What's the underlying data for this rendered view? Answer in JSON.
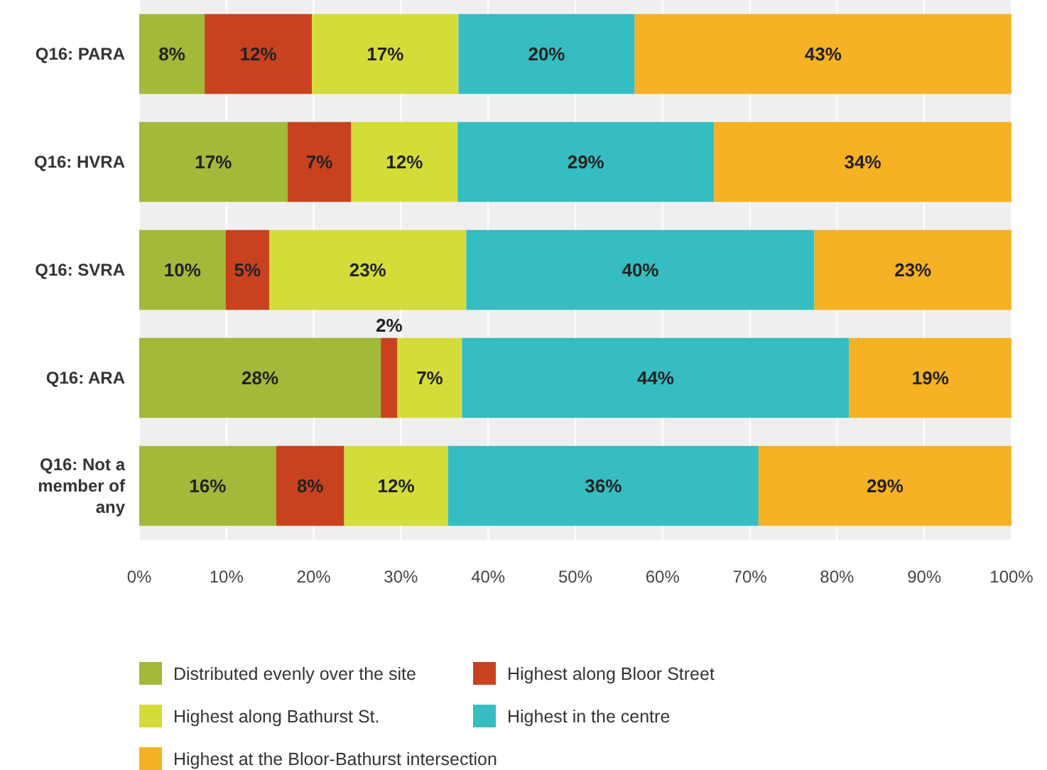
{
  "chart_data": {
    "type": "bar",
    "orientation": "horizontal",
    "stacked": true,
    "categories": [
      "Q16: PARA",
      "Q16: HVRA",
      "Q16: SVRA",
      "Q16: ARA",
      "Q16: Not a member of any"
    ],
    "series": [
      {
        "name": "Distributed evenly over the site",
        "color": "#a2b93a",
        "values": [
          7.5,
          17.0,
          9.9,
          27.7,
          15.7
        ],
        "value_labels": [
          "8%",
          "17%",
          "10%",
          "28%",
          "16%"
        ]
      },
      {
        "name": "Highest along Bloor Street",
        "color": "#c8421f",
        "values": [
          12.3,
          7.3,
          5.0,
          1.9,
          7.8
        ],
        "value_labels": [
          "12%",
          "7%",
          "5%",
          "2%",
          "8%"
        ]
      },
      {
        "name": "Highest along Bathurst St.",
        "color": "#d4dc3a",
        "values": [
          16.8,
          12.2,
          22.6,
          7.4,
          11.9
        ],
        "value_labels": [
          "17%",
          "12%",
          "23%",
          "7%",
          "12%"
        ]
      },
      {
        "name": "Highest in the centre",
        "color": "#36bdc1",
        "values": [
          20.2,
          29.4,
          39.9,
          44.4,
          35.6
        ],
        "value_labels": [
          "20%",
          "29%",
          "40%",
          "44%",
          "36%"
        ]
      },
      {
        "name": "Highest at the Bloor-Bathurst intersection",
        "color": "#f6b124",
        "values": [
          43.2,
          34.1,
          22.6,
          18.6,
          29.0
        ],
        "value_labels": [
          "43%",
          "34%",
          "23%",
          "19%",
          "29%"
        ]
      }
    ],
    "xlim": [
      0,
      100
    ],
    "xticks": [
      {
        "value": 0,
        "label": "0%"
      },
      {
        "value": 10,
        "label": "10%"
      },
      {
        "value": 20,
        "label": "20%"
      },
      {
        "value": 30,
        "label": "30%"
      },
      {
        "value": 40,
        "label": "40%"
      },
      {
        "value": 50,
        "label": "50%"
      },
      {
        "value": 60,
        "label": "60%"
      },
      {
        "value": 70,
        "label": "70%"
      },
      {
        "value": 80,
        "label": "80%"
      },
      {
        "value": 90,
        "label": "90%"
      },
      {
        "value": 100,
        "label": "100%"
      }
    ],
    "grid": "x",
    "legend": "bottom"
  }
}
